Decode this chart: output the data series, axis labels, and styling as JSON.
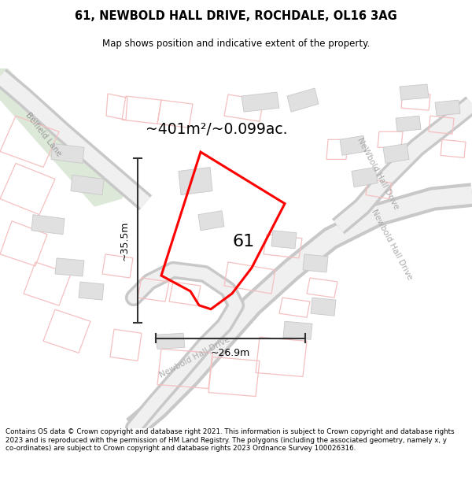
{
  "title_line1": "61, NEWBOLD HALL DRIVE, ROCHDALE, OL16 3AG",
  "title_line2": "Map shows position and indicative extent of the property.",
  "area_text": "~401m²/~0.099ac.",
  "width_label": "~26.9m",
  "height_label": "~35.5m",
  "plot_number": "61",
  "footer_text": "Contains OS data © Crown copyright and database right 2021. This information is subject to Crown copyright and database rights 2023 and is reproduced with the permission of HM Land Registry. The polygons (including the associated geometry, namely x, y co-ordinates) are subject to Crown copyright and database rights 2023 Ordnance Survey 100026316.",
  "map_bg": "#f9f9f9",
  "plot_color": "#ff0000",
  "building_fill": "#e0e0e0",
  "building_stroke": "#c8c8c8",
  "green_fill": "#dce8d8",
  "pink": "#f5c0c0",
  "road_fill": "#e8e8e8",
  "road_stroke": "#d0d0d0",
  "road_label_color": "#aaaaaa",
  "dim_color": "#333333"
}
